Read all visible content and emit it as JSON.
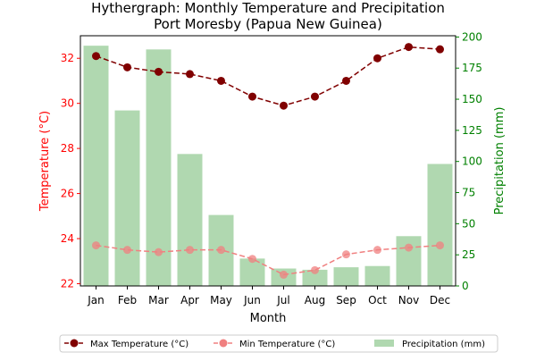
{
  "chart_data": {
    "type": "bar+line",
    "title_line1": "Hythergraph: Monthly Temperature and Precipitation",
    "title_line2": "Port Moresby (Papua New Guinea)",
    "xlabel": "Month",
    "ylabel_left": "Temperature (°C)",
    "ylabel_right": "Precipitation (mm)",
    "categories": [
      "Jan",
      "Feb",
      "Mar",
      "Apr",
      "May",
      "Jun",
      "Jul",
      "Aug",
      "Sep",
      "Oct",
      "Nov",
      "Dec"
    ],
    "ylim_left": [
      21.9,
      33.0
    ],
    "ylim_right": [
      0,
      201
    ],
    "yticks_left": [
      22,
      24,
      26,
      28,
      30,
      32
    ],
    "yticks_right": [
      0,
      25,
      50,
      75,
      100,
      125,
      150,
      175,
      200
    ],
    "series": [
      {
        "name": "Max Temperature (°C)",
        "kind": "line",
        "axis": "left",
        "color": "#800000",
        "values": [
          32.1,
          31.6,
          31.4,
          31.3,
          31.0,
          30.3,
          29.9,
          30.3,
          31.0,
          32.0,
          32.5,
          32.4
        ]
      },
      {
        "name": "Min Temperature (°C)",
        "kind": "line",
        "axis": "left",
        "color": "#f08080",
        "values": [
          23.7,
          23.5,
          23.4,
          23.5,
          23.5,
          23.1,
          22.4,
          22.6,
          23.3,
          23.5,
          23.6,
          23.7
        ]
      },
      {
        "name": "Precipitation (mm)",
        "kind": "bar",
        "axis": "right",
        "color": "#b0d8b0",
        "values": [
          193,
          141,
          190,
          106,
          57,
          22,
          14,
          13,
          15,
          16,
          40,
          98
        ]
      }
    ],
    "colors": {
      "left_axis": "#ff0000",
      "right_axis": "#008000"
    },
    "legend_position": "bottom-center",
    "grid": false
  }
}
